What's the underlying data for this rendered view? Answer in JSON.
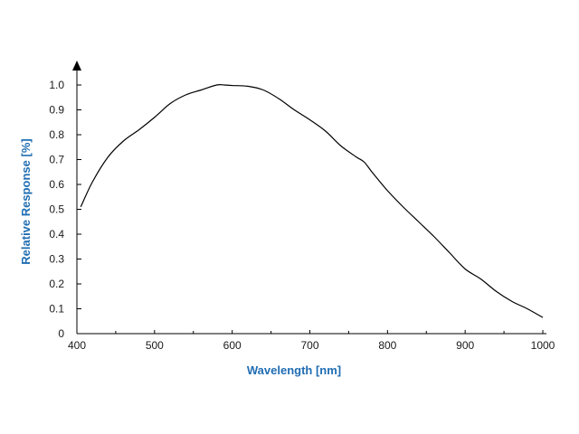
{
  "chart_data": {
    "type": "line",
    "title": "",
    "xlabel": "Wavelength [nm]",
    "ylabel": "Relative Response [%]",
    "xlim": [
      400,
      1000
    ],
    "ylim": [
      0,
      1.0
    ],
    "x_ticks": [
      400,
      500,
      600,
      700,
      800,
      900,
      1000
    ],
    "y_ticks": [
      "0",
      "0.1",
      "0.2",
      "0.3",
      "0.4",
      "0.5",
      "0.6",
      "0.7",
      "0.8",
      "0.9",
      "1.0"
    ],
    "grid": false,
    "legend": "none",
    "colors": {
      "axis_title": "#1f6db3",
      "line": "#000000",
      "axis": "#000000"
    },
    "series": [
      {
        "x": [
          405,
          420,
          440,
          460,
          480,
          500,
          520,
          540,
          560,
          580,
          590,
          600,
          620,
          640,
          660,
          680,
          700,
          720,
          740,
          760,
          770,
          780,
          800,
          820,
          840,
          860,
          880,
          900,
          920,
          940,
          960,
          980,
          1000
        ],
        "y": [
          0.51,
          0.61,
          0.71,
          0.775,
          0.82,
          0.87,
          0.925,
          0.96,
          0.98,
          1.0,
          1.0,
          0.998,
          0.995,
          0.98,
          0.945,
          0.9,
          0.86,
          0.815,
          0.755,
          0.71,
          0.69,
          0.65,
          0.575,
          0.51,
          0.45,
          0.39,
          0.325,
          0.26,
          0.22,
          0.17,
          0.13,
          0.1,
          0.065
        ]
      }
    ]
  }
}
